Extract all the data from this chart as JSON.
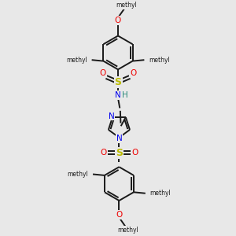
{
  "bg_color": "#e8e8e8",
  "bond_color": "#1a1a1a",
  "N_color": "#0000ee",
  "O_color": "#ee0000",
  "S_color": "#bbbb00",
  "H_color": "#2a8a7a",
  "C_color": "#1a1a1a",
  "line_width": 1.4,
  "fig_size": [
    3.0,
    3.0
  ],
  "dpi": 100,
  "xlim": [
    0,
    10
  ],
  "ylim": [
    0,
    10
  ]
}
